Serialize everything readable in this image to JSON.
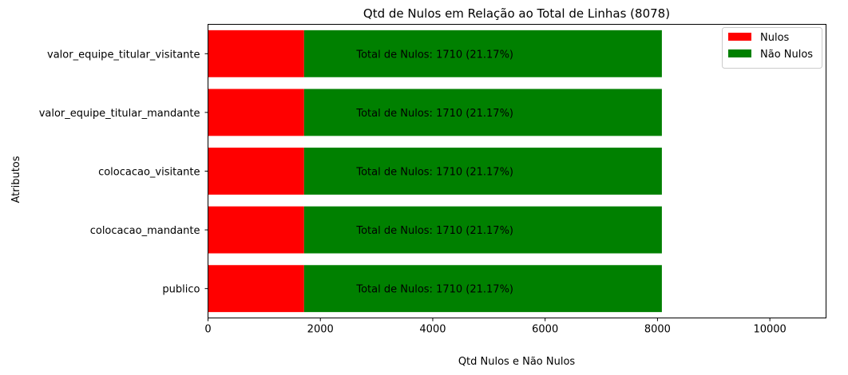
{
  "chart_data": {
    "type": "bar",
    "orientation": "horizontal",
    "stacked": true,
    "title": "Qtd de Nulos em Relação ao Total de Linhas (8078)",
    "xlabel": "Qtd Nulos e Não Nulos",
    "ylabel": "Atributos",
    "xlim": [
      0,
      11000
    ],
    "xticks": [
      0,
      2000,
      4000,
      6000,
      8000,
      10000
    ],
    "categories": [
      "valor_equipe_titular_visitante",
      "valor_equipe_titular_mandante",
      "colocacao_visitante",
      "colocacao_mandante",
      "publico"
    ],
    "series": [
      {
        "name": "Nulos",
        "color": "#ff0000",
        "values": [
          1710,
          1710,
          1710,
          1710,
          1710
        ]
      },
      {
        "name": "Não Nulos",
        "color": "#008000",
        "values": [
          6368,
          6368,
          6368,
          6368,
          6368
        ]
      }
    ],
    "annotations": [
      "Total de Nulos: 1710 (21.17%)",
      "Total de Nulos: 1710 (21.17%)",
      "Total de Nulos: 1710 (21.17%)",
      "Total de Nulos: 1710 (21.17%)",
      "Total de Nulos: 1710 (21.17%)"
    ],
    "legend": "top-right",
    "grid": false
  }
}
